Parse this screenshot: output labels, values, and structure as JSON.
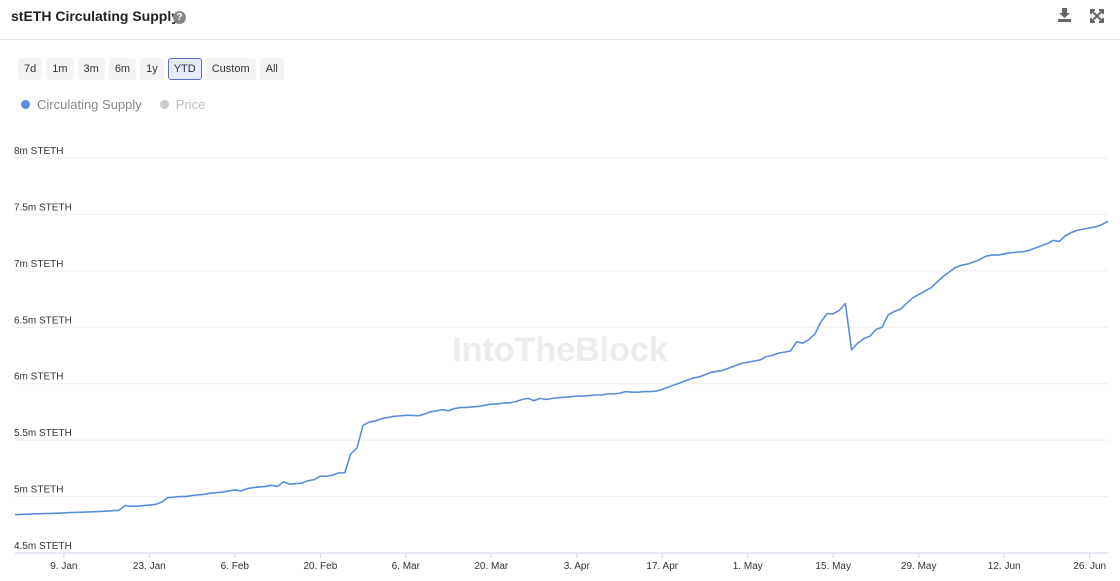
{
  "header": {
    "title": "stETH Circulating Supply",
    "help": "?"
  },
  "range_buttons": {
    "items": [
      "7d",
      "1m",
      "3m",
      "6m",
      "1y",
      "YTD",
      "Custom",
      "All"
    ],
    "selected": 5
  },
  "legend": [
    {
      "name": "Circulating Supply",
      "color": "#5b8dd9",
      "active": true
    },
    {
      "name": "Price",
      "color": "#cccccc",
      "active": false
    }
  ],
  "watermark": "IntoTheBlock",
  "chart_data": {
    "type": "line",
    "categories": [
      null,
      null,
      null,
      null,
      null,
      null,
      null,
      null,
      "9. Jan",
      null,
      null,
      null,
      null,
      null,
      null,
      null,
      null,
      null,
      null,
      null,
      null,
      null,
      "23. Jan",
      null,
      null,
      null,
      null,
      null,
      null,
      null,
      null,
      null,
      null,
      null,
      null,
      null,
      "6. Feb",
      null,
      null,
      null,
      null,
      null,
      null,
      null,
      null,
      null,
      null,
      null,
      null,
      null,
      "20. Feb",
      null,
      null,
      null,
      null,
      null,
      null,
      null,
      null,
      null,
      null,
      null,
      null,
      null,
      "6. Mar",
      null,
      null,
      null,
      null,
      null,
      null,
      null,
      null,
      null,
      null,
      null,
      null,
      null,
      "20. Mar",
      null,
      null,
      null,
      null,
      null,
      null,
      null,
      null,
      null,
      null,
      null,
      null,
      null,
      "3. Apr",
      null,
      null,
      null,
      null,
      null,
      null,
      null,
      null,
      null,
      null,
      null,
      null,
      null,
      "17. Apr",
      null,
      null,
      null,
      null,
      null,
      null,
      null,
      null,
      null,
      null,
      null,
      null,
      null,
      "1. May",
      null,
      null,
      null,
      null,
      null,
      null,
      null,
      null,
      null,
      null,
      null,
      null,
      null,
      "15. May",
      null,
      null,
      null,
      null,
      null,
      null,
      null,
      null,
      null,
      null,
      null,
      null,
      null,
      "29. May",
      null,
      null,
      null,
      null,
      null,
      null,
      null,
      null,
      null,
      null,
      null,
      null,
      null,
      "12. Jun",
      null,
      null,
      null,
      null,
      null,
      null,
      null,
      null,
      null,
      null,
      null,
      null,
      null,
      "26. Jun",
      null,
      null,
      null
    ],
    "series": [
      {
        "name": "Circulating Supply",
        "color": "#5b8dd9",
        "values": [
          4.84,
          4.842,
          4.844,
          4.846,
          4.848,
          4.85,
          4.851,
          4.853,
          4.855,
          4.858,
          4.86,
          4.862,
          4.864,
          4.866,
          4.868,
          4.872,
          4.875,
          4.878,
          4.92,
          4.915,
          4.915,
          4.92,
          4.925,
          4.93,
          4.95,
          4.99,
          4.995,
          5.0,
          5.0,
          5.01,
          5.015,
          5.02,
          5.03,
          5.035,
          5.04,
          5.05,
          5.06,
          5.05,
          5.07,
          5.08,
          5.085,
          5.09,
          5.1,
          5.09,
          5.13,
          5.11,
          5.115,
          5.12,
          5.14,
          5.15,
          5.18,
          5.18,
          5.19,
          5.21,
          5.21,
          5.38,
          5.43,
          5.63,
          5.66,
          5.67,
          5.69,
          5.7,
          5.71,
          5.715,
          5.72,
          5.72,
          5.715,
          5.73,
          5.75,
          5.76,
          5.77,
          5.76,
          5.78,
          5.79,
          5.79,
          5.795,
          5.8,
          5.81,
          5.82,
          5.82,
          5.83,
          5.83,
          5.84,
          5.86,
          5.87,
          5.85,
          5.87,
          5.86,
          5.87,
          5.875,
          5.88,
          5.885,
          5.89,
          5.89,
          5.895,
          5.9,
          5.9,
          5.91,
          5.91,
          5.915,
          5.93,
          5.925,
          5.925,
          5.93,
          5.93,
          5.935,
          5.95,
          5.97,
          5.99,
          6.01,
          6.03,
          6.05,
          6.06,
          6.08,
          6.1,
          6.11,
          6.12,
          6.14,
          6.16,
          6.18,
          6.19,
          6.2,
          6.21,
          6.24,
          6.25,
          6.27,
          6.28,
          6.29,
          6.37,
          6.36,
          6.39,
          6.44,
          6.55,
          6.62,
          6.62,
          6.65,
          6.71,
          6.3,
          6.36,
          6.4,
          6.42,
          6.48,
          6.5,
          6.61,
          6.64,
          6.66,
          6.71,
          6.76,
          6.79,
          6.82,
          6.85,
          6.9,
          6.95,
          6.99,
          7.03,
          7.05,
          7.06,
          7.08,
          7.1,
          7.13,
          7.14,
          7.14,
          7.15,
          7.16,
          7.165,
          7.17,
          7.18,
          7.2,
          7.22,
          7.24,
          7.27,
          7.26,
          7.31,
          7.34,
          7.36,
          7.37,
          7.38,
          7.39,
          7.41,
          7.44
        ]
      }
    ],
    "ylim": [
      4.5,
      8
    ],
    "yticks": [
      {
        "value": 4.5,
        "label": "4.5m STETH"
      },
      {
        "value": 5,
        "label": "5m STETH"
      },
      {
        "value": 5.5,
        "label": "5.5m STETH"
      },
      {
        "value": 6,
        "label": "6m STETH"
      },
      {
        "value": 6.5,
        "label": "6.5m STETH"
      },
      {
        "value": 7,
        "label": "7m STETH"
      },
      {
        "value": 7.5,
        "label": "7.5m STETH"
      },
      {
        "value": 8,
        "label": "8m STETH"
      }
    ],
    "grid": true
  }
}
